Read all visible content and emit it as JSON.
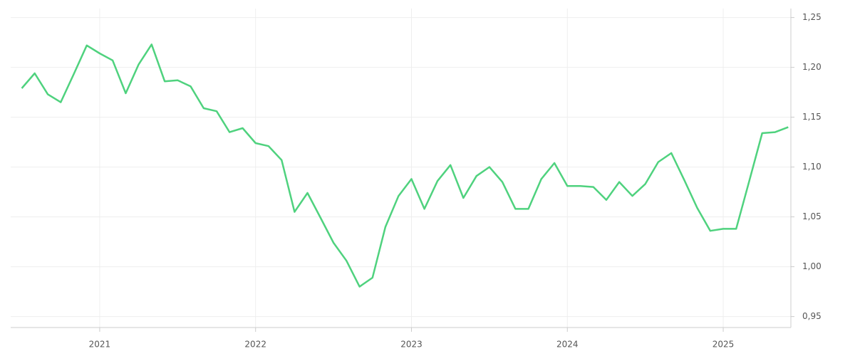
{
  "chart_data": {
    "type": "line",
    "x": [
      2020.5,
      2020.583,
      2020.667,
      2020.75,
      2020.833,
      2020.917,
      2021.0,
      2021.083,
      2021.167,
      2021.25,
      2021.333,
      2021.417,
      2021.5,
      2021.583,
      2021.667,
      2021.75,
      2021.833,
      2021.917,
      2022.0,
      2022.083,
      2022.167,
      2022.25,
      2022.333,
      2022.417,
      2022.5,
      2022.583,
      2022.667,
      2022.75,
      2022.833,
      2022.917,
      2023.0,
      2023.083,
      2023.167,
      2023.25,
      2023.333,
      2023.417,
      2023.5,
      2023.583,
      2023.667,
      2023.75,
      2023.833,
      2023.917,
      2024.0,
      2024.083,
      2024.167,
      2024.25,
      2024.333,
      2024.417,
      2024.5,
      2024.583,
      2024.667,
      2024.75,
      2024.833,
      2024.917,
      2025.0,
      2025.083,
      2025.167,
      2025.25,
      2025.333,
      2025.417
    ],
    "series": [
      {
        "color": "#4fd27e",
        "values": [
          1.179,
          1.194,
          1.173,
          1.165,
          1.193,
          1.222,
          1.214,
          1.207,
          1.174,
          1.203,
          1.223,
          1.186,
          1.187,
          1.181,
          1.159,
          1.156,
          1.135,
          1.139,
          1.124,
          1.121,
          1.107,
          1.055,
          1.074,
          1.049,
          1.024,
          1.006,
          0.98,
          0.989,
          1.04,
          1.071,
          1.088,
          1.058,
          1.086,
          1.102,
          1.069,
          1.091,
          1.1,
          1.085,
          1.058,
          1.058,
          1.088,
          1.104,
          1.081,
          1.081,
          1.08,
          1.067,
          1.085,
          1.071,
          1.083,
          1.105,
          1.114,
          1.087,
          1.059,
          1.036,
          1.038,
          1.038,
          1.086,
          1.134,
          1.135,
          1.14
        ]
      }
    ],
    "xlim": [
      2020.429,
      2025.434
    ],
    "xticks": [
      2021,
      2022,
      2023,
      2024,
      2025
    ],
    "ylim": [
      0.939,
      1.259
    ],
    "yticks": [
      {
        "value": 0.95,
        "label": "0,95"
      },
      {
        "value": 1.0,
        "label": "1,00"
      },
      {
        "value": 1.05,
        "label": "1,05"
      },
      {
        "value": 1.1,
        "label": "1,10"
      },
      {
        "value": 1.15,
        "label": "1,15"
      },
      {
        "value": 1.2,
        "label": "1,20"
      },
      {
        "value": 1.25,
        "label": "1,25"
      }
    ],
    "grid": true,
    "y_axis_side": "right"
  }
}
